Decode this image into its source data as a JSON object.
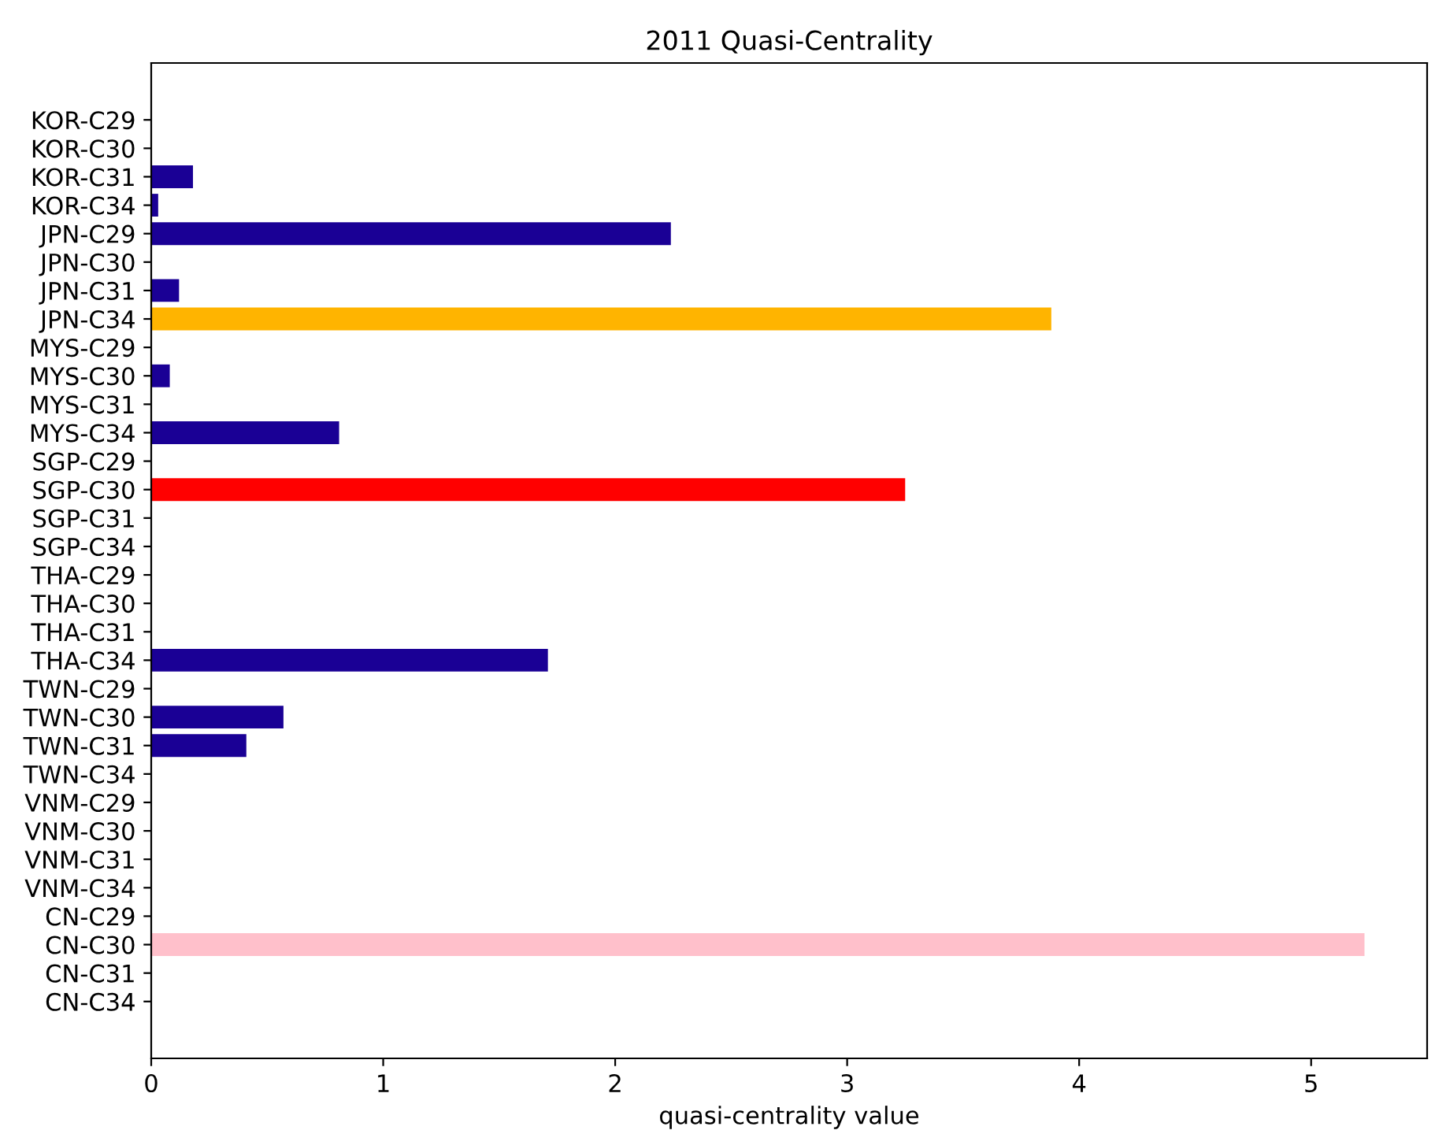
{
  "chart_data": {
    "type": "bar",
    "orientation": "horizontal",
    "title": "2011 Quasi-Centrality",
    "xlabel": "quasi-centrality value",
    "categories": [
      "KOR-C29",
      "KOR-C30",
      "KOR-C31",
      "KOR-C34",
      "JPN-C29",
      "JPN-C30",
      "JPN-C31",
      "JPN-C34",
      "MYS-C29",
      "MYS-C30",
      "MYS-C31",
      "MYS-C34",
      "SGP-C29",
      "SGP-C30",
      "SGP-C31",
      "SGP-C34",
      "THA-C29",
      "THA-C30",
      "THA-C31",
      "THA-C34",
      "TWN-C29",
      "TWN-C30",
      "TWN-C31",
      "TWN-C34",
      "VNM-C29",
      "VNM-C30",
      "VNM-C31",
      "VNM-C34",
      "CN-C29",
      "CN-C30",
      "CN-C31",
      "CN-C34"
    ],
    "values": [
      0,
      0,
      0.18,
      0.03,
      2.24,
      0,
      0.12,
      3.88,
      0,
      0.08,
      0,
      0.81,
      0,
      3.25,
      0,
      0,
      0,
      0,
      0,
      1.71,
      0,
      0.57,
      0.41,
      0,
      0,
      0,
      0,
      0,
      0,
      5.23,
      0,
      0
    ],
    "colors": [
      "#1a0095",
      "#1a0095",
      "#1a0095",
      "#1a0095",
      "#1a0095",
      "#1a0095",
      "#1a0095",
      "#ffb400",
      "#1a0095",
      "#1a0095",
      "#1a0095",
      "#1a0095",
      "#1a0095",
      "#ff0000",
      "#1a0095",
      "#1a0095",
      "#1a0095",
      "#1a0095",
      "#1a0095",
      "#1a0095",
      "#1a0095",
      "#1a0095",
      "#1a0095",
      "#1a0095",
      "#1a0095",
      "#1a0095",
      "#1a0095",
      "#1a0095",
      "#1a0095",
      "#ffc0cb",
      "#1a0095",
      "#1a0095"
    ],
    "xlim": [
      0,
      5.5
    ],
    "xticks": [
      0,
      1,
      2,
      3,
      4,
      5
    ],
    "grid": false
  }
}
